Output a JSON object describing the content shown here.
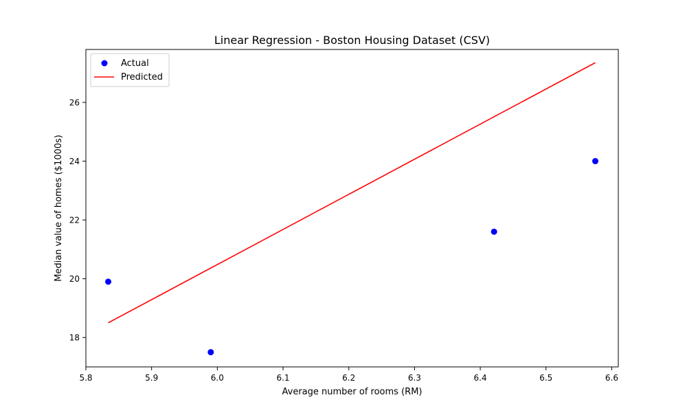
{
  "chart_data": {
    "type": "scatter",
    "title": "Linear Regression - Boston Housing Dataset (CSV)",
    "xlabel": "Average number of rooms (RM)",
    "ylabel": "Median value of homes ($1000s)",
    "xlim": [
      5.8,
      6.61
    ],
    "ylim": [
      17.0,
      27.8
    ],
    "xticks": [
      5.8,
      5.9,
      6.0,
      6.1,
      6.2,
      6.3,
      6.4,
      6.5,
      6.6
    ],
    "xtick_labels": [
      "5.8",
      "5.9",
      "6.0",
      "6.1",
      "6.2",
      "6.3",
      "6.4",
      "6.5",
      "6.6"
    ],
    "yticks": [
      18,
      20,
      22,
      24,
      26
    ],
    "ytick_labels": [
      "18",
      "20",
      "22",
      "24",
      "26"
    ],
    "grid": false,
    "legend_position": "top-left",
    "series": [
      {
        "name": "Actual",
        "kind": "scatter",
        "color": "#0000ff",
        "points": [
          {
            "x": 5.834,
            "y": 19.9
          },
          {
            "x": 5.99,
            "y": 17.5
          },
          {
            "x": 6.421,
            "y": 21.6
          },
          {
            "x": 6.575,
            "y": 24.0
          }
        ]
      },
      {
        "name": "Predicted",
        "kind": "line",
        "color": "#ff0000",
        "points": [
          {
            "x": 5.834,
            "y": 18.5
          },
          {
            "x": 6.575,
            "y": 27.35
          }
        ]
      }
    ]
  }
}
